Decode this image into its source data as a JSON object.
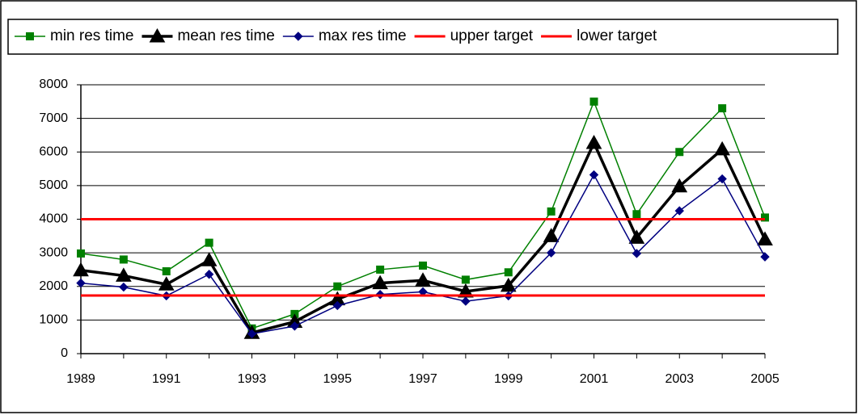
{
  "chart_data": {
    "type": "line",
    "x": [
      1989,
      1990,
      1991,
      1992,
      1993,
      1994,
      1995,
      1996,
      1997,
      1998,
      1999,
      2000,
      2001,
      2002,
      2003,
      2004,
      2005
    ],
    "xlim": [
      1989,
      2005
    ],
    "xticks": [
      1989,
      1991,
      1993,
      1995,
      1997,
      1999,
      2001,
      2003,
      2005
    ],
    "ylim": [
      0,
      8000
    ],
    "yticks": [
      0,
      1000,
      2000,
      3000,
      4000,
      5000,
      6000,
      7000,
      8000
    ],
    "grid": true,
    "legend": "top",
    "series": [
      {
        "name": "min res time",
        "color": "#008000",
        "marker": "square",
        "values": [
          2980,
          2800,
          2450,
          3300,
          750,
          1180,
          2000,
          2500,
          2620,
          2200,
          2420,
          4230,
          7500,
          4150,
          6000,
          7300,
          4050
        ]
      },
      {
        "name": "mean res time",
        "color": "#000000",
        "marker": "triangle",
        "values": [
          2480,
          2320,
          2060,
          2780,
          620,
          950,
          1620,
          2100,
          2180,
          1850,
          2020,
          3500,
          6270,
          3450,
          4980,
          6080,
          3400
        ]
      },
      {
        "name": "max res time",
        "color": "#000080",
        "marker": "diamond",
        "values": [
          2100,
          1980,
          1720,
          2360,
          590,
          820,
          1430,
          1760,
          1840,
          1560,
          1720,
          3000,
          5320,
          2980,
          4250,
          5200,
          2880
        ]
      },
      {
        "name": "upper target",
        "color": "#ff0000",
        "value": 4000
      },
      {
        "name": "lower target",
        "color": "#ff0000",
        "value": 1730
      }
    ]
  }
}
